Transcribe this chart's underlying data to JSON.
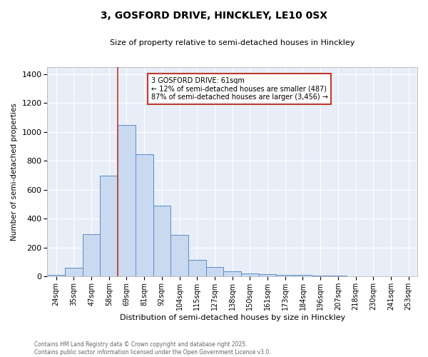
{
  "title": "3, GOSFORD DRIVE, HINCKLEY, LE10 0SX",
  "subtitle": "Size of property relative to semi-detached houses in Hinckley",
  "xlabel": "Distribution of semi-detached houses by size in Hinckley",
  "ylabel": "Number of semi-detached properties",
  "bar_color": "#c9d9f0",
  "bar_edge_color": "#5b8cc8",
  "bg_color": "#e8eef8",
  "grid_color": "white",
  "categories": [
    "24sqm",
    "35sqm",
    "47sqm",
    "58sqm",
    "69sqm",
    "81sqm",
    "92sqm",
    "104sqm",
    "115sqm",
    "127sqm",
    "138sqm",
    "150sqm",
    "161sqm",
    "173sqm",
    "184sqm",
    "196sqm",
    "207sqm",
    "218sqm",
    "230sqm",
    "241sqm",
    "253sqm"
  ],
  "values": [
    10,
    60,
    295,
    700,
    1050,
    845,
    490,
    290,
    115,
    65,
    35,
    20,
    18,
    12,
    12,
    8,
    8,
    0,
    0,
    0,
    0
  ],
  "vline_x": 3.5,
  "vline_color": "#c0392b",
  "annotation_title": "3 GOSFORD DRIVE: 61sqm",
  "annotation_line1": "← 12% of semi-detached houses are smaller (487)",
  "annotation_line2": "87% of semi-detached houses are larger (3,456) →",
  "annotation_box_color": "#c0392b",
  "ylim": [
    0,
    1450
  ],
  "yticks": [
    0,
    200,
    400,
    600,
    800,
    1000,
    1200,
    1400
  ],
  "footnote1": "Contains HM Land Registry data © Crown copyright and database right 2025.",
  "footnote2": "Contains public sector information licensed under the Open Government Licence v3.0."
}
